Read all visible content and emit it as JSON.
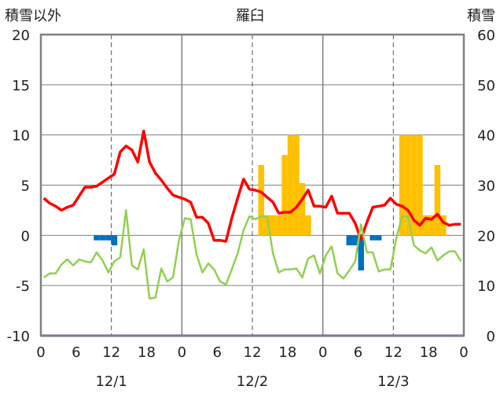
{
  "chart_data": {
    "type": "line",
    "title": "羅臼",
    "left_axis_label": "積雪以外",
    "right_axis_label": "積雪",
    "left_ylim": [
      -10,
      20
    ],
    "right_ylim": [
      0,
      60
    ],
    "left_ticks": [
      "20",
      "15",
      "10",
      "5",
      "0",
      "-5",
      "-10"
    ],
    "right_ticks": [
      "60",
      "50",
      "40",
      "30",
      "20",
      "10",
      "0"
    ],
    "x_tick_labels": [
      "0",
      "6",
      "12",
      "18",
      "0",
      "6",
      "12",
      "18",
      "0",
      "6",
      "12",
      "18",
      "0"
    ],
    "date_labels": [
      "12/1",
      "12/2",
      "12/3"
    ],
    "grid": "dashed vertical at 12h, solid at day boundaries",
    "x_range_hours": [
      0,
      72
    ],
    "colors": {
      "red": "#ff0000",
      "green": "#92d050",
      "yellow": "#ffc000",
      "blue": "#0070c0",
      "purple": "#7030a0",
      "frame": "#808080"
    },
    "series": [
      {
        "color": "#ff0000",
        "axis": "left",
        "x": [
          0,
          1,
          2,
          3,
          4,
          5,
          6,
          7,
          8,
          9,
          10,
          11,
          12,
          13,
          14,
          15,
          16,
          17,
          18,
          19,
          20,
          21,
          22,
          23,
          24,
          25,
          26,
          27,
          28,
          29,
          30,
          31,
          32,
          33,
          34,
          35,
          36,
          37,
          38,
          39,
          40,
          41,
          42,
          43,
          44,
          45,
          46,
          47,
          48,
          49,
          50,
          51,
          52,
          53,
          54,
          55,
          56,
          57,
          58,
          59,
          60,
          61,
          62,
          63,
          64,
          65,
          66,
          67,
          68,
          69,
          70,
          71
        ],
        "values": [
          3.7,
          3.2,
          2.9,
          2.5,
          2.8,
          3.0,
          3.9,
          4.8,
          4.8,
          4.9,
          5.3,
          5.7,
          6.1,
          8.3,
          8.9,
          8.5,
          7.3,
          10.4,
          7.3,
          6.2,
          5.5,
          4.7,
          4.0,
          3.8,
          3.6,
          3.3,
          1.8,
          1.8,
          1.2,
          -0.5,
          -0.5,
          -0.6,
          1.7,
          3.7,
          5.6,
          4.6,
          4.5,
          4.3,
          3.8,
          3.3,
          2.2,
          2.3,
          2.3,
          2.8,
          3.6,
          4.5,
          2.9,
          2.9,
          2.8,
          3.9,
          2.2,
          2.2,
          2.2,
          1.2,
          -0.4,
          1.3,
          2.8,
          2.9,
          3.0,
          3.7,
          3.1,
          2.9,
          2.5,
          1.5,
          1.0,
          1.7,
          1.6,
          2.1,
          1.3,
          1.0,
          1.1,
          1.1
        ]
      },
      {
        "color": "#92d050",
        "axis": "left",
        "x": [
          0,
          1,
          2,
          3,
          4,
          5,
          6,
          7,
          8,
          9,
          10,
          11,
          12,
          13,
          14,
          15,
          16,
          17,
          18,
          19,
          20,
          21,
          22,
          23,
          24,
          25,
          26,
          27,
          28,
          29,
          30,
          31,
          32,
          33,
          34,
          35,
          36,
          37,
          38,
          39,
          40,
          41,
          42,
          43,
          44,
          45,
          46,
          47,
          48,
          49,
          50,
          51,
          52,
          53,
          54,
          55,
          56,
          57,
          58,
          59,
          60,
          61,
          62,
          63,
          64,
          65,
          66,
          67,
          68,
          69,
          70,
          71
        ],
        "values": [
          -4.2,
          -3.8,
          -3.8,
          -2.9,
          -2.4,
          -3.0,
          -2.4,
          -2.6,
          -2.7,
          -1.7,
          -2.5,
          -3.7,
          -2.6,
          -2.2,
          2.5,
          -3.0,
          -3.4,
          -1.4,
          -6.3,
          -6.2,
          -3.3,
          -4.6,
          -4.2,
          -0.5,
          1.7,
          1.6,
          -1.9,
          -3.7,
          -2.8,
          -3.4,
          -4.6,
          -4.9,
          -3.4,
          -1.8,
          0.5,
          1.9,
          1.6,
          1.9,
          1.9,
          -1.8,
          -3.7,
          -3.4,
          -3.4,
          -3.3,
          -4.2,
          -2.3,
          -2.0,
          -3.8,
          -2.0,
          -1.1,
          -3.8,
          -4.3,
          -3.5,
          -2.6,
          1.1,
          -1.7,
          -1.7,
          -3.6,
          -3.4,
          -3.4,
          -0.3,
          1.9,
          1.9,
          -1.0,
          -1.5,
          -1.8,
          -1.2,
          -2.5,
          -2.0,
          -1.6,
          -1.6,
          -2.6
        ]
      },
      {
        "color": "#ffc000",
        "type": "bar",
        "axis": "left",
        "x": [
          37,
          38,
          39,
          40,
          41,
          42,
          43,
          44,
          45,
          61,
          62,
          63,
          64,
          65,
          66,
          67,
          68
        ],
        "values": [
          7.0,
          2.0,
          2.0,
          2.0,
          8.0,
          10.0,
          10.0,
          5.2,
          2.0,
          10.0,
          10.0,
          10.0,
          10.0,
          2.0,
          2.0,
          7.0,
          2.0
        ]
      },
      {
        "color": "#0070c0",
        "type": "bar",
        "axis": "left",
        "x": [
          9,
          10,
          11,
          12,
          52,
          53,
          54,
          56,
          57
        ],
        "values": [
          -0.5,
          -0.5,
          -0.5,
          -1.0,
          -1.0,
          -1.0,
          -3.5,
          -0.5,
          -0.5
        ]
      },
      {
        "color": "#7030a0",
        "axis": "right",
        "x": [
          0,
          72
        ],
        "values": [
          0,
          0
        ]
      }
    ]
  }
}
